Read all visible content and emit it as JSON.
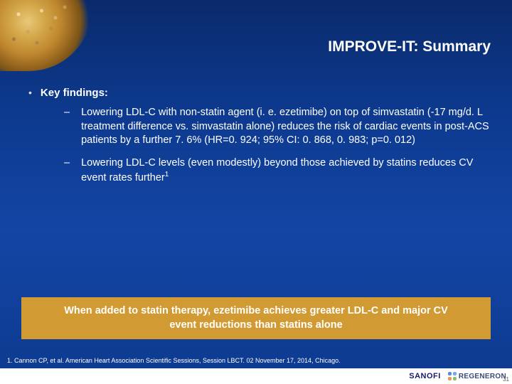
{
  "colors": {
    "background_gradient": [
      "#0a2a6b",
      "#0d3a8f",
      "#1345a5"
    ],
    "callout_bg": "#d19a33",
    "text": "#ffffff",
    "footer_bg": "#ffffff",
    "sanofi_logo": "#1a1a6a",
    "regeneron_logo": "#3a4a78"
  },
  "title": "IMPROVE-IT: Summary",
  "key_findings_label": "Key findings:",
  "bullets": [
    {
      "text_html": "Lowering LDL-C with non-statin agent (i. e. ezetimibe) on top of simvastatin (-17 mg/d. L treatment difference vs. simvastatin alone) reduces the risk of cardiac events in post-ACS patients by a further 7. 6% (HR=0. 924; 95% CI: 0. 868, 0. 983; p=0. 012)"
    },
    {
      "text_html": "Lowering LDL-C levels (even modestly) beyond those achieved by statins reduces CV event rates further<sup>1</sup>"
    }
  ],
  "callout": "When added to statin therapy, ezetimibe achieves greater LDL-C and major CV event reductions than statins alone",
  "footnote": "1. Cannon CP,  et al. American Heart Association Scientific Sessions, Session LBCT. 02  November 17, 2014, Chicago.",
  "footer": {
    "sanofi": "SANOFI",
    "regeneron": "REGENERON"
  },
  "page_number": "31"
}
